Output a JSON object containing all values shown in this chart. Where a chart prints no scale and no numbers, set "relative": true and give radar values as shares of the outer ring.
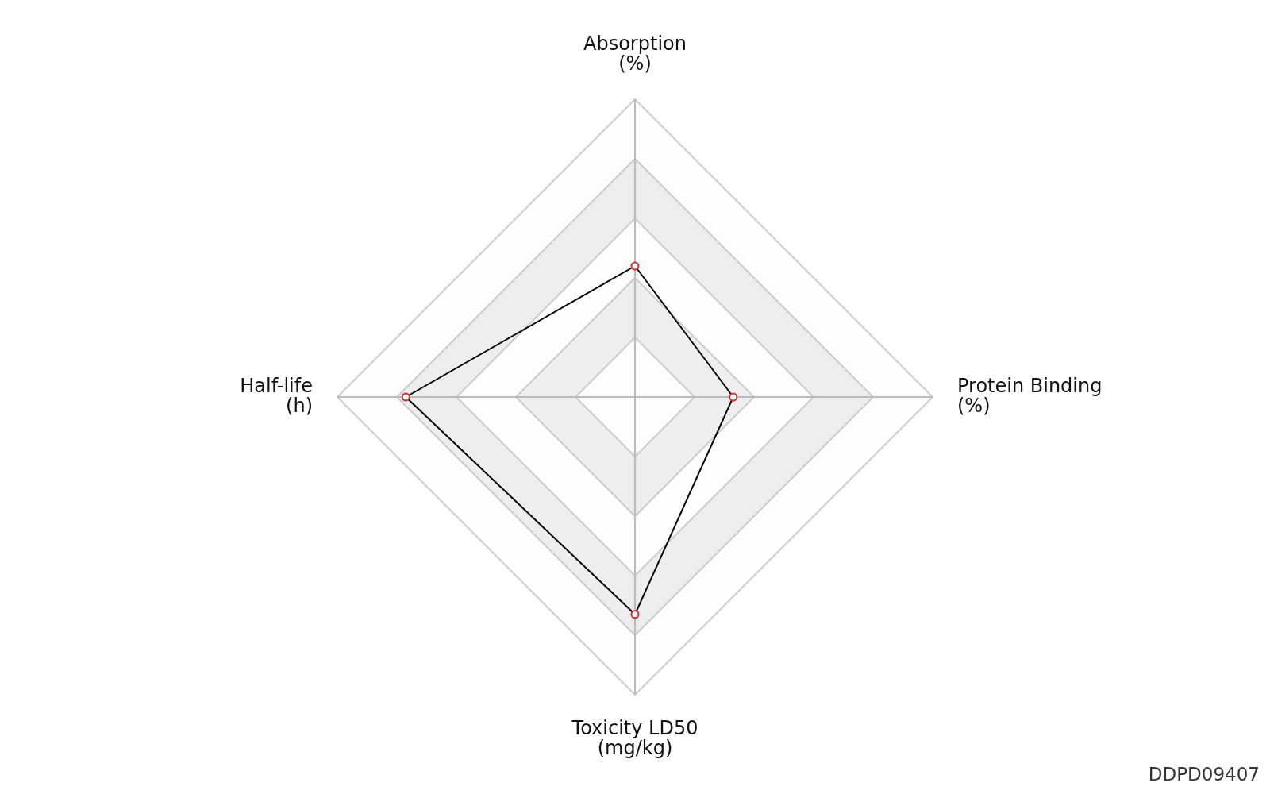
{
  "chart_data": {
    "type": "radar",
    "categories": [
      "Absorption\n(%)",
      "Protein Binding\n(%)",
      "Toxicity LD50\n(mg/kg)",
      "Half-life\n(h)"
    ],
    "relative": true,
    "series": [
      {
        "color": "#000000",
        "values": [
          0.44,
          0.33,
          0.73,
          0.77
        ]
      }
    ],
    "marker": "circle",
    "grid": true,
    "annotations": [
      "DDPD09407"
    ]
  }
}
